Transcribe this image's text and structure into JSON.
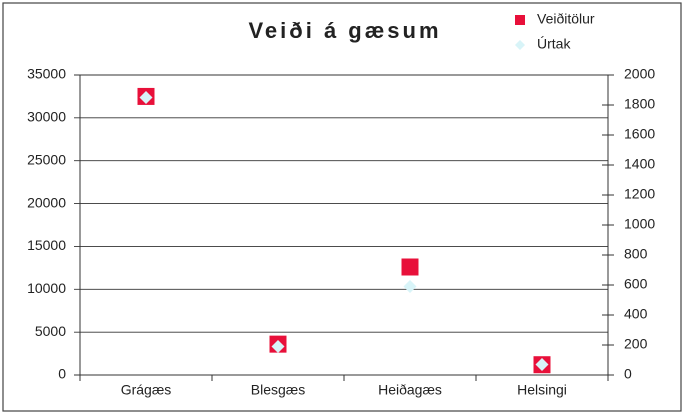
{
  "chart_data": {
    "type": "scatter",
    "title": "Veiði á gæsum",
    "categories": [
      "Grágæs",
      "Blesgæs",
      "Heiðagæs",
      "Helsingi"
    ],
    "series": [
      {
        "name": "Veiðitölur",
        "color": "#e8103a",
        "marker": "square",
        "values": [
          32500,
          3600,
          12600,
          1200
        ]
      },
      {
        "name": "Úrtak",
        "color": "#d8f4f8",
        "marker": "diamond",
        "axis": "y2",
        "values": [
          1850,
          190,
          590,
          70
        ]
      }
    ],
    "ylim": [
      0,
      35000
    ],
    "yticks": [
      0,
      5000,
      10000,
      15000,
      20000,
      25000,
      30000,
      35000
    ],
    "y2lim": [
      0,
      2000
    ],
    "y2ticks": [
      0,
      200,
      400,
      600,
      800,
      1000,
      1200,
      1400,
      1600,
      1800,
      2000
    ],
    "grid": true,
    "legend": "top-right"
  }
}
